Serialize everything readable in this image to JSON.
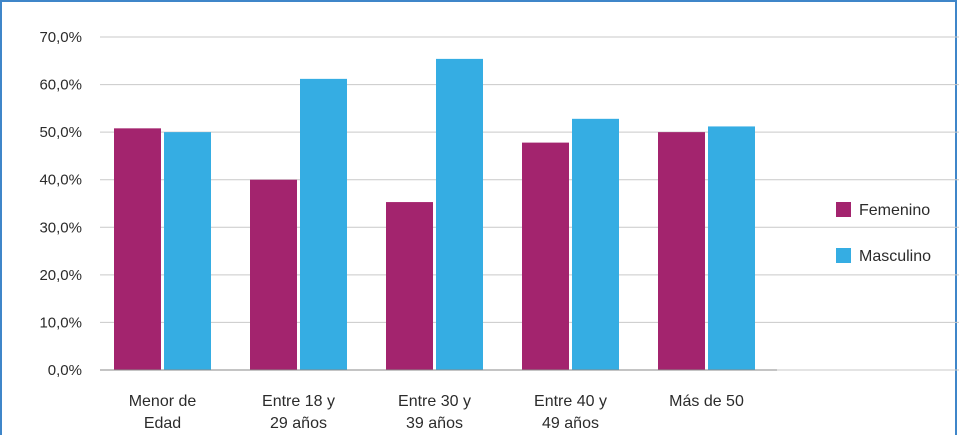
{
  "chart_data": {
    "type": "bar",
    "title": "",
    "xlabel": "",
    "ylabel": "",
    "categories": [
      [
        "Menor de",
        "Edad"
      ],
      [
        "Entre 18 y",
        "29 años"
      ],
      [
        "Entre 30 y",
        "39 años"
      ],
      [
        "Entre 40 y",
        "49 años"
      ],
      [
        "Más de 50"
      ]
    ],
    "series": [
      {
        "name": "Femenino",
        "color": "#a3246e",
        "values": [
          50.8,
          40.0,
          35.3,
          47.8,
          50.0
        ]
      },
      {
        "name": "Masculino",
        "color": "#35ade3",
        "values": [
          50.0,
          61.2,
          65.4,
          52.8,
          51.2
        ]
      }
    ],
    "ylim": [
      0,
      70
    ],
    "yticks": [
      "0,0%",
      "10,0%",
      "20,0%",
      "30,0%",
      "40,0%",
      "50,0%",
      "60,0%",
      "70,0%"
    ],
    "grid": true,
    "legend_position": "right"
  }
}
